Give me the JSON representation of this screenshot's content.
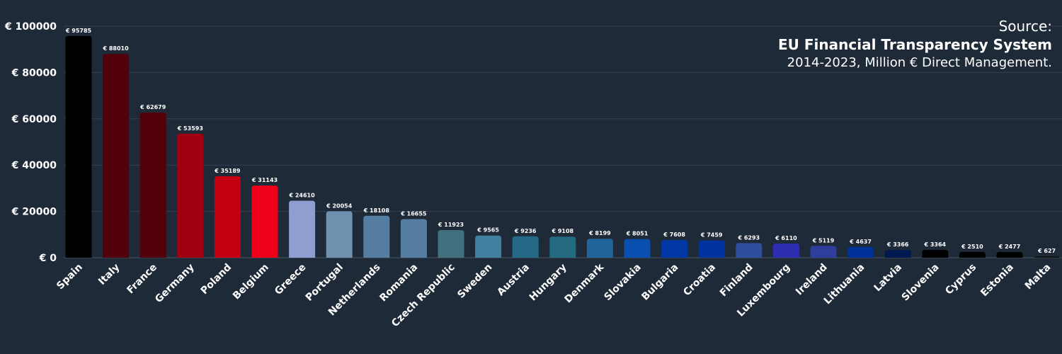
{
  "chart_data": {
    "type": "bar",
    "title": "",
    "xlabel": "",
    "ylabel": "",
    "ylim": [
      0,
      100000
    ],
    "yticks": [
      "€ 0",
      "€ 20000",
      "€ 40000",
      "€ 60000",
      "€ 80000",
      "€ 100000"
    ],
    "ytick_values": [
      0,
      20000,
      40000,
      60000,
      80000,
      100000
    ],
    "grid": true,
    "categories": [
      "Spain",
      "Italy",
      "France",
      "Germany",
      "Poland",
      "Belgium",
      "Greece",
      "Portugal",
      "Netherlands",
      "Romania",
      "Czech Republic",
      "Sweden",
      "Austria",
      "Hungary",
      "Denmark",
      "Slovakia",
      "Bulgaria",
      "Croatia",
      "Finland",
      "Luxembourg",
      "Ireland",
      "Lithuania",
      "Latvia",
      "Slovenia",
      "Cyprus",
      "Estonia",
      "Malta"
    ],
    "values": [
      95785,
      88010,
      62679,
      53593,
      35189,
      31143,
      24610,
      20054,
      18108,
      16655,
      11923,
      9565,
      9236,
      9108,
      8199,
      8051,
      7608,
      7459,
      6293,
      6110,
      5119,
      4637,
      3366,
      3364,
      2510,
      2477,
      627
    ],
    "data_labels": [
      "€ 95785",
      "€ 88010",
      "€ 62679",
      "€ 53593",
      "€ 35189",
      "€ 31143",
      "€ 24610",
      "€ 20054",
      "€ 18108",
      "€ 16655",
      "€ 11923",
      "€ 9565",
      "€ 9236",
      "€ 9108",
      "€ 8199",
      "€ 8051",
      "€ 7608",
      "€ 7459",
      "€ 6293",
      "€ 6110",
      "€ 5119",
      "€ 4637",
      "€ 3366",
      "€ 3364",
      "€ 2510",
      "€ 2477",
      "€ 627"
    ],
    "colors": [
      "#000000",
      "#52000a",
      "#52000a",
      "#a0000f",
      "#c40012",
      "#ee0018",
      "#8f9dd0",
      "#6f91b0",
      "#567ea3",
      "#567ea3",
      "#41717f",
      "#41809f",
      "#246a86",
      "#246a80",
      "#20649a",
      "#0a4eb0",
      "#0037a5",
      "#0033a0",
      "#2d4f9e",
      "#2d2fb0",
      "#2e3e9a",
      "#00309a",
      "#001a50",
      "#000000",
      "#000000",
      "#000000",
      "#111111"
    ]
  },
  "source": {
    "line1": "Source:",
    "line2": "EU Financial Transparency System",
    "line3": "2014-2023, Million € Direct Management."
  }
}
